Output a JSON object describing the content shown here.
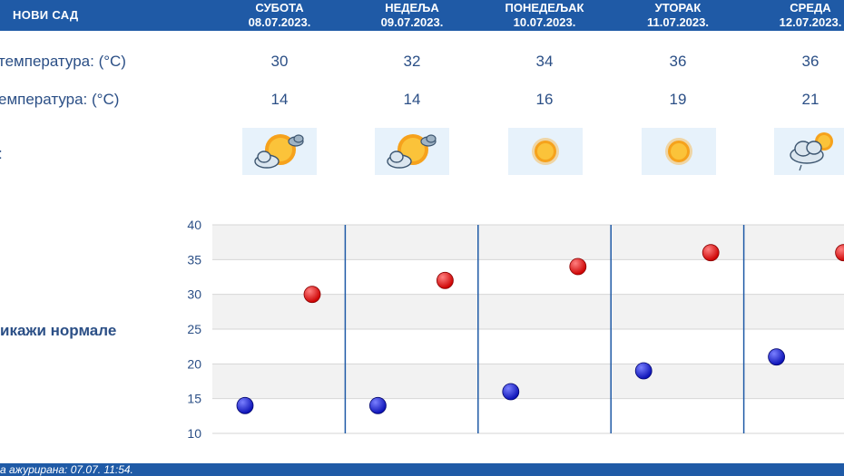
{
  "header": {
    "city": "НОВИ САД",
    "days": [
      {
        "name": "СУБОТА",
        "date": "08.07.2023."
      },
      {
        "name": "НЕДЕЉА",
        "date": "09.07.2023."
      },
      {
        "name": "ПОНЕДЕЉАК",
        "date": "10.07.2023."
      },
      {
        "name": "УТОРАК",
        "date": "11.07.2023."
      },
      {
        "name": "СРЕДА",
        "date": "12.07.2023."
      }
    ]
  },
  "rows": {
    "max_label": "температура: (°C)",
    "min_label": "емпература: (°C)",
    "icon_label": ":",
    "max_values": [
      "30",
      "32",
      "34",
      "36",
      "36"
    ],
    "min_values": [
      "14",
      "14",
      "16",
      "19",
      "21"
    ]
  },
  "icons": [
    "partly-sunny-icon",
    "partly-sunny-icon",
    "sun-icon",
    "sun-icon",
    "cloud-rain-sun-icon"
  ],
  "normals_label": "икажи нормале",
  "footer": {
    "updated": "а ажурирана:  07.07. 11:54."
  },
  "colors": {
    "header": "#1f5aa6",
    "max_dot": "#cc0000",
    "min_dot": "#0a10b5",
    "icon_bg": "#e7f2fb"
  },
  "chart_data": {
    "type": "scatter",
    "categories": [
      "08.07.2023.",
      "09.07.2023.",
      "10.07.2023.",
      "11.07.2023.",
      "12.07.2023."
    ],
    "series": [
      {
        "values": [
          30,
          32,
          34,
          36,
          36
        ]
      },
      {
        "values": [
          14,
          14,
          16,
          19,
          21
        ]
      }
    ],
    "ylim": [
      10,
      40
    ],
    "yticks": [
      "40",
      "35",
      "30",
      "25",
      "20",
      "15",
      "10"
    ],
    "grid": true
  }
}
